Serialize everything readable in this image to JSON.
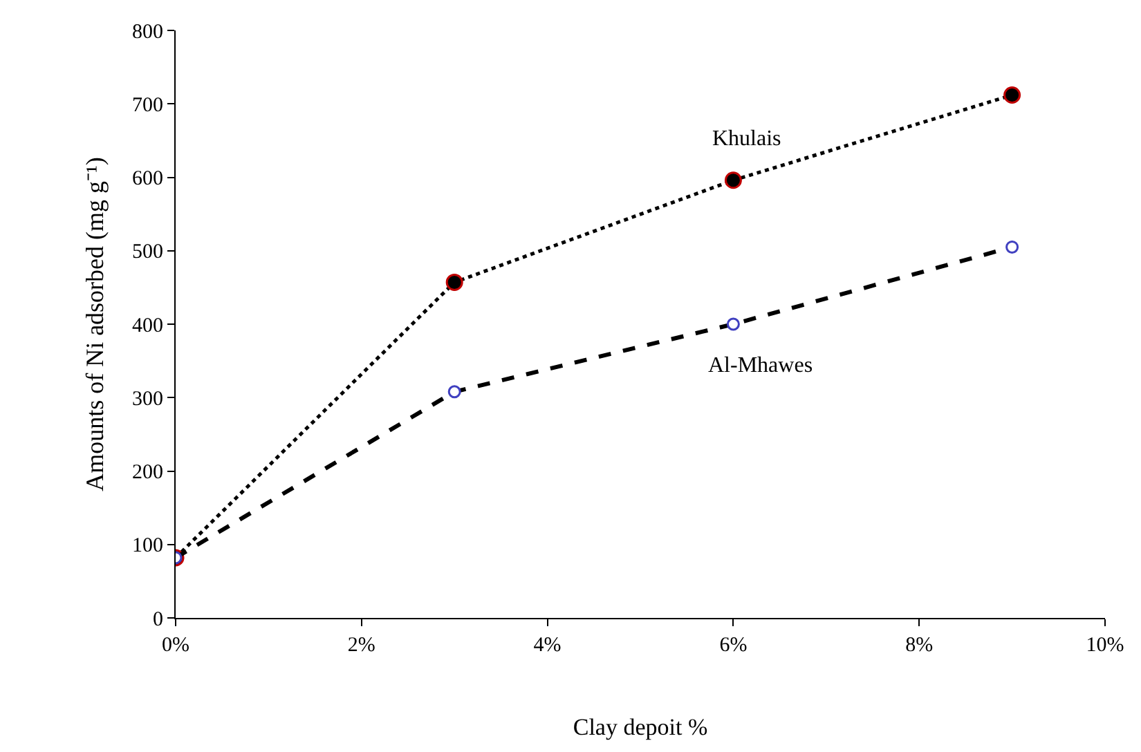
{
  "chart_data": {
    "type": "line",
    "xlabel": "Clay depoit %",
    "ylabel": "Amounts of Ni adsorbed (mg g⁻¹)",
    "x": [
      0,
      3,
      6,
      9
    ],
    "series": [
      {
        "name": "Khulais",
        "color": "#000000",
        "values": [
          82,
          457,
          596,
          712
        ],
        "line_style": "dotted"
      },
      {
        "name": "Al-Mhawes",
        "color": "#000000",
        "values": [
          82,
          308,
          400,
          505
        ],
        "line_style": "dashed"
      }
    ],
    "xlim": [
      0,
      10
    ],
    "xticks": [
      {
        "value": 0,
        "label": "0%"
      },
      {
        "value": 2,
        "label": "2%"
      },
      {
        "value": 4,
        "label": "4%"
      },
      {
        "value": 6,
        "label": "6%"
      },
      {
        "value": 8,
        "label": "8%"
      },
      {
        "value": 10,
        "label": "10%"
      }
    ],
    "ylim": [
      0,
      800
    ],
    "yticks": [
      0,
      100,
      200,
      300,
      400,
      500,
      600,
      700,
      800
    ],
    "legend": false,
    "marker": "circle"
  }
}
